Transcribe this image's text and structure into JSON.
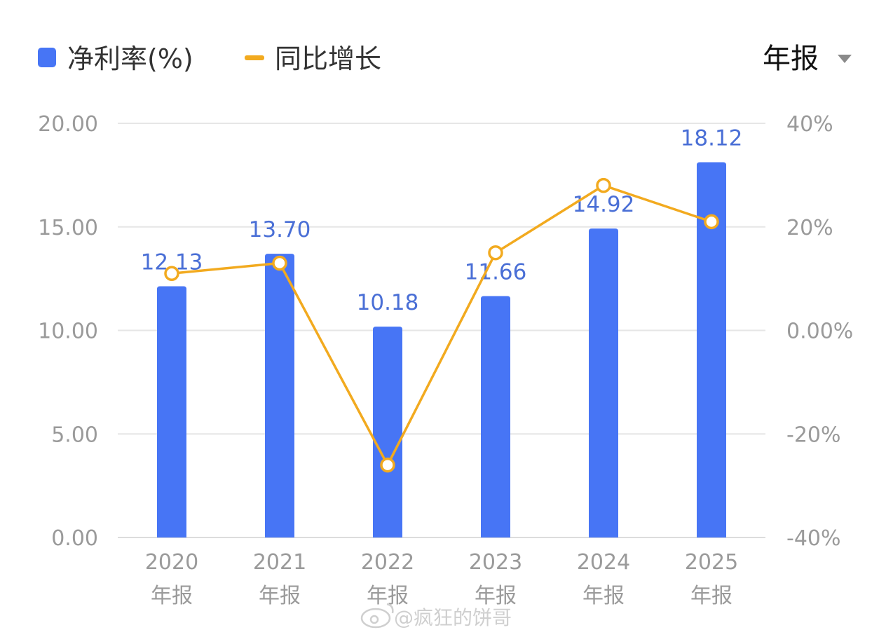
{
  "legend": {
    "bar_label": "净利率(%)",
    "line_label": "同比增长"
  },
  "period_selector": {
    "label": "年报"
  },
  "watermark": {
    "text": "@疯狂的饼哥"
  },
  "colors": {
    "bar": "#4775f5",
    "line": "#f2aa1f",
    "data_label": "#4a6fd6",
    "grid": "#e6e6e6",
    "axis_text": "#9a9a9a"
  },
  "chart_data": {
    "type": "bar",
    "categories": [
      "2020",
      "2021",
      "2022",
      "2023",
      "2024",
      "2025"
    ],
    "category_sub_label": "年报",
    "series": [
      {
        "name": "净利率(%)",
        "type": "bar",
        "axis": "left",
        "values": [
          12.13,
          13.7,
          10.18,
          11.66,
          14.92,
          18.12
        ],
        "data_labels": [
          "12.13",
          "13.70",
          "10.18",
          "11.66",
          "14.92",
          "18.12"
        ]
      },
      {
        "name": "同比增长",
        "type": "line",
        "axis": "right",
        "values": [
          11,
          13,
          -26,
          15,
          28,
          21
        ]
      }
    ],
    "y_left": {
      "range": [
        0,
        20
      ],
      "ticks": [
        0,
        5,
        10,
        15,
        20
      ],
      "tick_labels": [
        "0.00",
        "5.00",
        "10.00",
        "15.00",
        "20.00"
      ]
    },
    "y_right": {
      "range": [
        -40,
        40
      ],
      "ticks": [
        -40,
        -20,
        0,
        20,
        40
      ],
      "tick_labels": [
        "-40%",
        "-20%",
        "0.00%",
        "20%",
        "40%"
      ]
    },
    "grid": true,
    "legend_position": "top-left"
  }
}
